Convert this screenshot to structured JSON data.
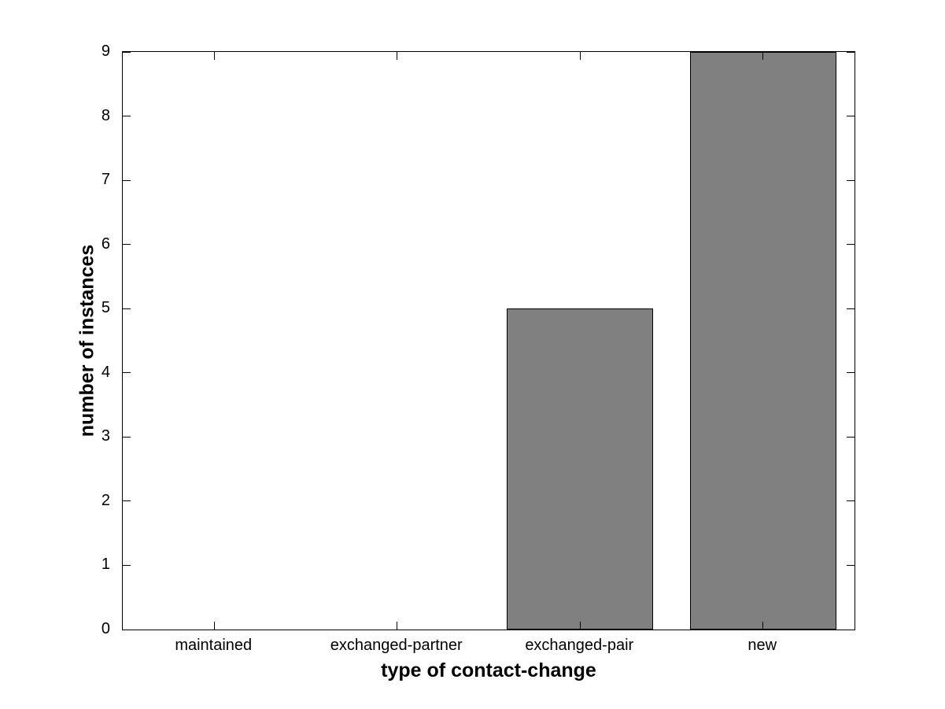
{
  "figure": {
    "background_color": "#ffffff",
    "text_color": "#000000"
  },
  "chart_data": {
    "type": "bar",
    "title": "",
    "categories": [
      "maintained",
      "exchanged-partner",
      "exchanged-pair",
      "new"
    ],
    "values": [
      0,
      0,
      5,
      9
    ],
    "xlabel": "type of contact-change",
    "ylabel": "number of instances",
    "ylim": [
      0,
      9
    ],
    "yticks": [
      0,
      1,
      2,
      3,
      4,
      5,
      6,
      7,
      8,
      9
    ],
    "grid": false,
    "legend": "none",
    "bar_fill_color": "#808080",
    "bar_edge_color": "#000000",
    "bar_width_fraction": 0.8,
    "axis_color": "#000000",
    "tick_direction": "in",
    "box": true
  }
}
